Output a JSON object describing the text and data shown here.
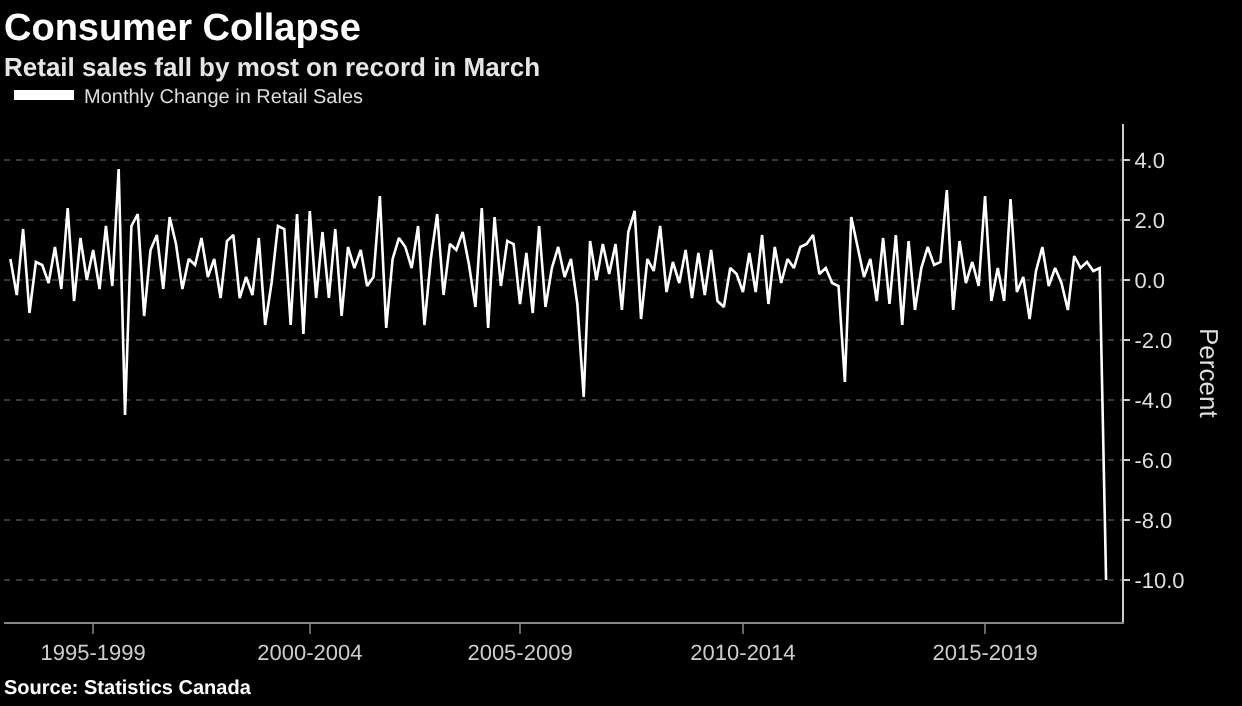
{
  "chart_data": {
    "type": "line",
    "title": "Consumer Collapse",
    "subtitle": "Retail sales fall by most on record in March",
    "ylabel": "Percent",
    "annotations": [
      "Source: Statistics Canada"
    ],
    "legend": "top left",
    "grid": "y",
    "marker": "none",
    "line_style": "solid",
    "categories": [
      null,
      null,
      null,
      null,
      null,
      null,
      null,
      null,
      null,
      null,
      null,
      null,
      null,
      "1995-1999",
      null,
      null,
      null,
      null,
      null,
      null,
      null,
      null,
      null,
      null,
      null,
      null,
      null,
      null,
      null,
      null,
      null,
      null,
      null,
      null,
      null,
      null,
      null,
      null,
      null,
      null,
      null,
      null,
      null,
      null,
      null,
      null,
      null,
      "2000-2004",
      null,
      null,
      null,
      null,
      null,
      null,
      null,
      null,
      null,
      null,
      null,
      null,
      null,
      null,
      null,
      null,
      null,
      null,
      null,
      null,
      null,
      null,
      null,
      null,
      null,
      null,
      null,
      null,
      null,
      null,
      null,
      null,
      "2005-2009",
      null,
      null,
      null,
      null,
      null,
      null,
      null,
      null,
      null,
      null,
      null,
      null,
      null,
      null,
      null,
      null,
      null,
      null,
      null,
      null,
      null,
      null,
      null,
      null,
      null,
      null,
      null,
      null,
      null,
      null,
      null,
      null,
      null,
      null,
      "2010-2014",
      null,
      null,
      null,
      null,
      null,
      null,
      null,
      null,
      null,
      null,
      null,
      null,
      null,
      null,
      null,
      null,
      null,
      null,
      null,
      null,
      null,
      null,
      null,
      null,
      null,
      null,
      null,
      null,
      null,
      null,
      null,
      null,
      null,
      null,
      null,
      null,
      null,
      "2015-2019",
      null,
      null,
      null,
      null,
      null,
      null,
      null,
      null,
      null,
      null,
      null,
      null,
      null,
      null,
      null,
      null,
      null,
      null,
      null
    ],
    "ylim": [
      -11.4,
      5.2
    ],
    "yticks": [
      {
        "value": 4,
        "label": "4.0"
      },
      {
        "value": 2,
        "label": "2.0"
      },
      {
        "value": 0,
        "label": "0.0"
      },
      {
        "value": -2,
        "label": "-2.0"
      },
      {
        "value": -4,
        "label": "-4.0"
      },
      {
        "value": -6,
        "label": "-6.0"
      },
      {
        "value": -8,
        "label": "-8.0"
      },
      {
        "value": -10,
        "label": "-10.0"
      }
    ],
    "series": [
      {
        "name": "Monthly Change in Retail Sales",
        "color": "#ffffff",
        "values": [
          0.7,
          -0.5,
          1.7,
          -1.1,
          0.6,
          0.5,
          -0.1,
          1.1,
          -0.3,
          2.4,
          -0.7,
          1.4,
          0.0,
          1.0,
          -0.3,
          1.8,
          -0.2,
          3.7,
          -4.5,
          1.8,
          2.2,
          -1.2,
          1.0,
          1.5,
          -0.3,
          2.1,
          1.2,
          -0.3,
          0.7,
          0.5,
          1.4,
          0.1,
          0.7,
          -0.6,
          1.3,
          1.5,
          -0.6,
          0.1,
          -0.5,
          1.4,
          -1.5,
          -0.1,
          1.8,
          1.7,
          -1.5,
          2.2,
          -1.8,
          2.3,
          -0.6,
          1.6,
          -0.6,
          1.7,
          -1.2,
          1.1,
          0.4,
          1.0,
          -0.2,
          0.1,
          2.8,
          -1.6,
          0.7,
          1.4,
          1.1,
          0.4,
          1.8,
          -1.5,
          0.7,
          2.2,
          -0.5,
          1.2,
          1.0,
          1.6,
          0.5,
          -0.9,
          2.4,
          -1.6,
          2.1,
          -0.2,
          1.3,
          1.2,
          -0.8,
          0.9,
          -1.1,
          1.8,
          -0.9,
          0.4,
          1.1,
          0.1,
          0.7,
          -0.8,
          -3.9,
          1.3,
          0.0,
          1.2,
          0.2,
          1.2,
          -1.0,
          1.6,
          2.3,
          -1.3,
          0.7,
          0.3,
          1.8,
          -0.4,
          0.6,
          -0.1,
          1.0,
          -0.6,
          0.9,
          -0.5,
          1.0,
          -0.7,
          -0.9,
          0.4,
          0.2,
          -0.4,
          0.9,
          -0.4,
          1.5,
          -0.8,
          1.1,
          -0.1,
          0.7,
          0.4,
          1.1,
          1.2,
          1.5,
          0.2,
          0.4,
          -0.1,
          -0.2,
          -3.4,
          2.1,
          1.1,
          0.1,
          0.7,
          -0.7,
          1.4,
          -0.8,
          1.5,
          -1.5,
          1.3,
          -1.0,
          0.4,
          1.1,
          0.5,
          0.6,
          3.0,
          -1.0,
          1.3,
          -0.1,
          0.6,
          -0.2,
          2.8,
          -0.7,
          0.4,
          -0.7,
          2.7,
          -0.4,
          0.1,
          -1.3,
          0.3,
          1.1,
          -0.2,
          0.4,
          -0.1,
          -1.0,
          0.8,
          0.4,
          0.6,
          0.3,
          0.4,
          -10.0
        ]
      }
    ]
  }
}
